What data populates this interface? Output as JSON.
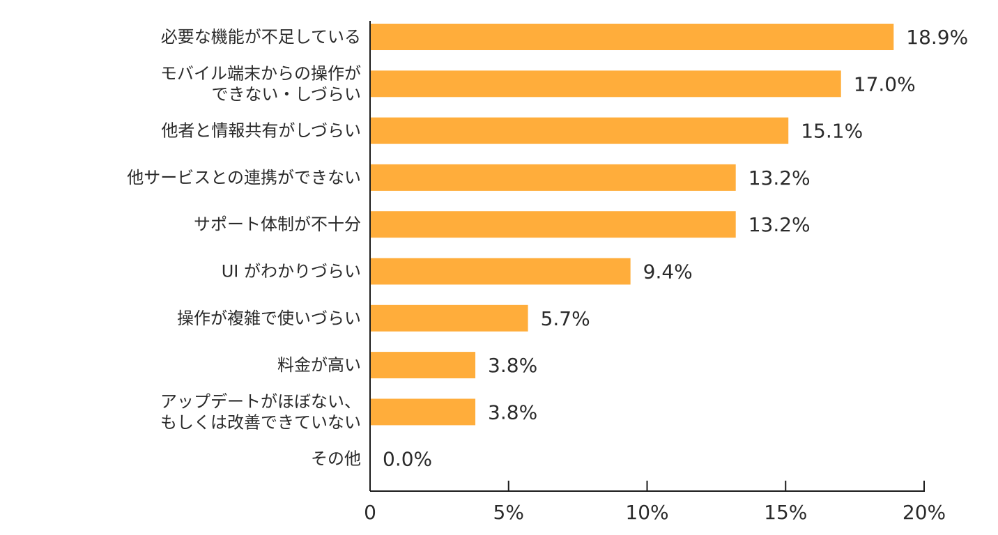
{
  "chart_data": {
    "type": "bar",
    "orientation": "horizontal",
    "categories": [
      [
        "必要な機能が不足している"
      ],
      [
        "モバイル端末からの操作が",
        "できない・しづらい"
      ],
      [
        "他者と情報共有がしづらい"
      ],
      [
        "他サービスとの連携ができない"
      ],
      [
        "サポート体制が不十分"
      ],
      [
        "UI がわかりづらい"
      ],
      [
        "操作が複雑で使いづらい"
      ],
      [
        "料金が高い"
      ],
      [
        "アップデートがほぼない、",
        "もしくは改善できていない"
      ],
      [
        "その他"
      ]
    ],
    "values": [
      18.9,
      17.0,
      15.1,
      13.2,
      13.2,
      9.4,
      5.7,
      3.8,
      3.8,
      0.0
    ],
    "value_labels": [
      "18.9%",
      "17.0%",
      "15.1%",
      "13.2%",
      "13.2%",
      "9.4%",
      "5.7%",
      "3.8%",
      "3.8%",
      "0.0%"
    ],
    "xlim": [
      0,
      20
    ],
    "xticks": [
      0,
      5,
      10,
      15,
      20
    ],
    "xtick_labels": [
      "0",
      "5%",
      "10%",
      "15%",
      "20%"
    ],
    "bar_color": "#FFAD3B",
    "axis_color": "#1a1a1a",
    "text_color": "#2a2a2a",
    "title": "",
    "xlabel": "",
    "ylabel": "",
    "grid": false,
    "legend": "none"
  }
}
